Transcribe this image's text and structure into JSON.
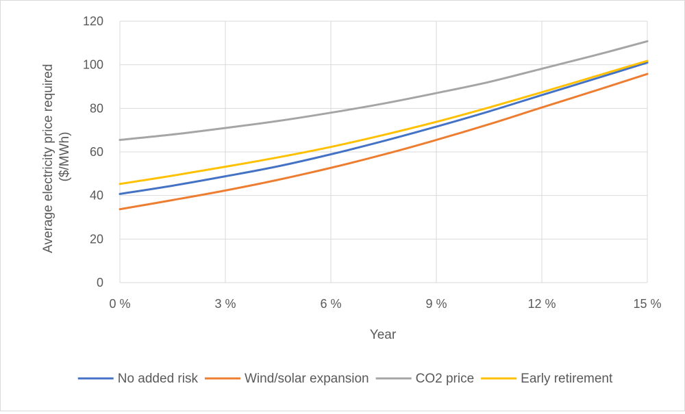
{
  "chart_data": {
    "type": "line",
    "title": "",
    "xlabel": "Year",
    "ylabel": "Average electricity price required ($/MWh)",
    "ylabel_lines": [
      "Average electricity price required",
      "($/MWh)"
    ],
    "x": [
      0,
      1.5,
      3,
      4.5,
      6,
      7.5,
      9,
      10.5,
      12,
      13.5,
      15
    ],
    "x_ticks": [
      0,
      3,
      6,
      9,
      12,
      15
    ],
    "x_tick_labels": [
      "0 %",
      "3 %",
      "6 %",
      "9 %",
      "12 %",
      "15 %"
    ],
    "xlim": [
      0,
      15
    ],
    "y_ticks": [
      0,
      20,
      40,
      60,
      80,
      100,
      120
    ],
    "y_tick_labels": [
      "0",
      "20",
      "40",
      "60",
      "80",
      "100",
      "120"
    ],
    "ylim": [
      0,
      120
    ],
    "grid": true,
    "legend_position": "bottom",
    "series": [
      {
        "name": "No added risk",
        "color": "#4472C4",
        "values": [
          40.7,
          44.5,
          48.8,
          53.4,
          58.9,
          65.0,
          71.6,
          78.6,
          86.1,
          93.5,
          101.0
        ]
      },
      {
        "name": "Wind/solar expansion",
        "color": "#ED7D31",
        "values": [
          33.7,
          37.9,
          42.3,
          47.2,
          52.7,
          58.8,
          65.5,
          72.7,
          80.4,
          88.0,
          95.8
        ]
      },
      {
        "name": "CO2 price",
        "color": "#A5A5A5",
        "values": [
          65.5,
          68.0,
          71.0,
          74.2,
          78.0,
          82.2,
          87.0,
          92.1,
          98.2,
          104.3,
          110.8
        ]
      },
      {
        "name": "Early retirement",
        "color": "#FFC000",
        "values": [
          45.3,
          49.1,
          53.2,
          57.5,
          62.3,
          67.8,
          73.8,
          80.4,
          87.4,
          94.6,
          101.8
        ]
      }
    ]
  }
}
